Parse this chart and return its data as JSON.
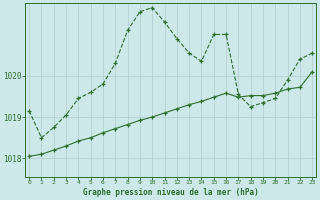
{
  "title": "Graphe pression niveau de la mer (hPa)",
  "background_color": "#cde8e8",
  "grid_color": "#b0cccc",
  "line_color": "#2d6e2d",
  "xlim": [
    -0.3,
    23.3
  ],
  "ylim": [
    1017.55,
    1021.75
  ],
  "yticks": [
    1018,
    1019,
    1020
  ],
  "xticks": [
    0,
    1,
    2,
    3,
    4,
    5,
    6,
    7,
    8,
    9,
    10,
    11,
    12,
    13,
    14,
    15,
    16,
    17,
    18,
    19,
    20,
    21,
    22,
    23
  ],
  "series1_x": [
    0,
    1,
    2,
    3,
    4,
    5,
    6,
    7,
    8,
    9,
    10,
    11,
    12,
    13,
    14,
    15,
    16,
    17,
    18,
    19,
    20,
    21,
    22,
    23
  ],
  "series1_y": [
    1019.15,
    1018.5,
    1018.75,
    1019.05,
    1019.45,
    1019.6,
    1019.8,
    1020.3,
    1021.1,
    1021.55,
    1021.65,
    1021.3,
    1020.9,
    1020.55,
    1020.35,
    1021.0,
    1021.0,
    1019.55,
    1019.25,
    1019.35,
    1019.45,
    1019.9,
    1020.4,
    1020.55
  ],
  "series2_x": [
    0,
    1,
    2,
    3,
    4,
    5,
    6,
    7,
    8,
    9,
    10,
    11,
    12,
    13,
    14,
    15,
    16,
    17,
    18,
    19,
    20,
    21,
    22,
    23
  ],
  "series2_y": [
    1018.05,
    1018.1,
    1018.2,
    1018.3,
    1018.42,
    1018.5,
    1018.62,
    1018.72,
    1018.82,
    1018.92,
    1019.0,
    1019.1,
    1019.2,
    1019.3,
    1019.38,
    1019.48,
    1019.58,
    1019.48,
    1019.52,
    1019.52,
    1019.58,
    1019.68,
    1019.72,
    1020.1
  ]
}
